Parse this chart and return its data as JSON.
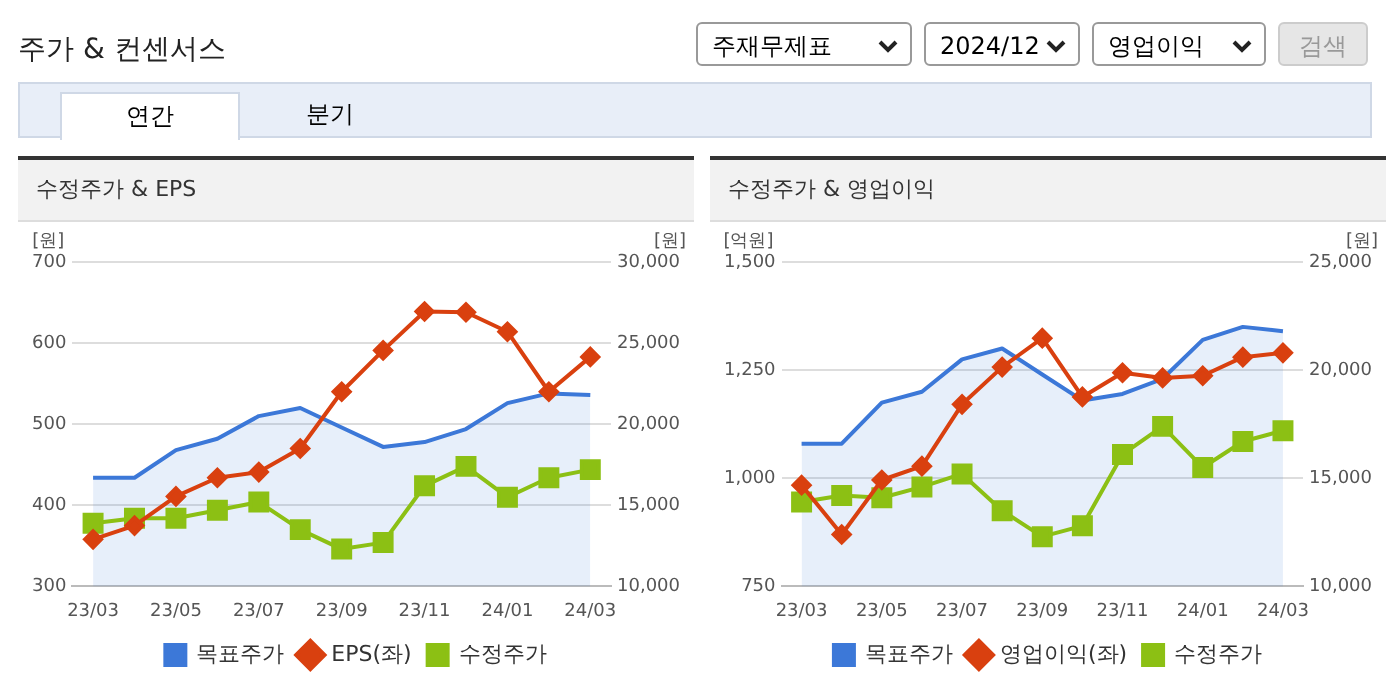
{
  "chart_data": [
    {
      "type": "other",
      "title": "주가 & 컨센서스",
      "annotations": [
        "주재무제표",
        "2024/12",
        "영업이익",
        "검색",
        "연간",
        "분기"
      ]
    },
    {
      "type": "line",
      "title": "수정주가 & EPS",
      "ylabel": "[원]",
      "y2label": "[원]",
      "categories": [
        "23/03",
        null,
        "23/05",
        null,
        "23/07",
        null,
        "23/09",
        null,
        "23/11",
        null,
        "24/01",
        null,
        "24/03"
      ],
      "series": [
        {
          "name": "목표주가",
          "type": "area",
          "axis": "y2",
          "color": "#3c78d8",
          "values": [
            16700,
            16700,
            18400,
            19100,
            20500,
            21000,
            19800,
            18600,
            18900,
            19700,
            21300,
            21900,
            21800
          ]
        },
        {
          "name": "EPS(좌)",
          "type": "line",
          "axis": "y",
          "color": "#d9400f",
          "marker": "diamond",
          "values": [
            358,
            375,
            411,
            434,
            441,
            470,
            540,
            591,
            639,
            638,
            614,
            540,
            583
          ]
        },
        {
          "name": "수정주가",
          "type": "line",
          "axis": "y2",
          "color": "#8cc014",
          "marker": "square",
          "values": [
            13900,
            14200,
            14200,
            14700,
            15200,
            13500,
            12300,
            12700,
            16200,
            17400,
            15500,
            16700,
            17200
          ]
        }
      ],
      "ylim": [
        300,
        700
      ],
      "yticks": [
        300,
        400,
        500,
        600,
        700
      ],
      "y2lim": [
        10000,
        30000
      ],
      "y2ticks": [
        {
          "value": 10000,
          "label": "10,000"
        },
        {
          "value": 15000,
          "label": "15,000"
        },
        {
          "value": 20000,
          "label": "20,000"
        },
        {
          "value": 25000,
          "label": "25,000"
        },
        {
          "value": 30000,
          "label": "30,000"
        }
      ],
      "grid": "y",
      "legend": "bottom"
    },
    {
      "type": "line",
      "title": "수정주가 & 영업이익",
      "ylabel": "[억원]",
      "y2label": "[원]",
      "categories": [
        "23/03",
        null,
        "23/05",
        null,
        "23/07",
        null,
        "23/09",
        null,
        "23/11",
        null,
        "24/01",
        null,
        "24/03"
      ],
      "series": [
        {
          "name": "목표주가",
          "type": "area",
          "axis": "y2",
          "color": "#3c78d8",
          "values": [
            16600,
            16600,
            18500,
            19000,
            20500,
            21000,
            19800,
            18600,
            18900,
            19600,
            21400,
            22000,
            21800
          ]
        },
        {
          "name": "영업이익(좌)",
          "type": "line",
          "axis": "y",
          "color": "#d9400f",
          "marker": "diamond",
          "values": [
            984,
            870,
            996,
            1028,
            1171,
            1257,
            1324,
            1188,
            1244,
            1232,
            1237,
            1280,
            1290
          ]
        },
        {
          "name": "수정주가",
          "type": "line",
          "axis": "y2",
          "color": "#8cc014",
          "marker": "square",
          "values": [
            13900,
            14200,
            14100,
            14600,
            15200,
            13500,
            12300,
            12800,
            16100,
            17400,
            15500,
            16700,
            17200
          ]
        }
      ],
      "ylim": [
        750,
        1500
      ],
      "yticks": [
        750,
        {
          "value": 1000,
          "label": "1,000"
        },
        {
          "value": 1250,
          "label": "1,250"
        },
        {
          "value": 1500,
          "label": "1,500"
        }
      ],
      "y2lim": [
        10000,
        25000
      ],
      "y2ticks": [
        {
          "value": 10000,
          "label": "10,000"
        },
        {
          "value": 15000,
          "label": "15,000"
        },
        {
          "value": 20000,
          "label": "20,000"
        },
        {
          "value": 25000,
          "label": "25,000"
        }
      ],
      "grid": "y",
      "legend": "bottom"
    }
  ]
}
